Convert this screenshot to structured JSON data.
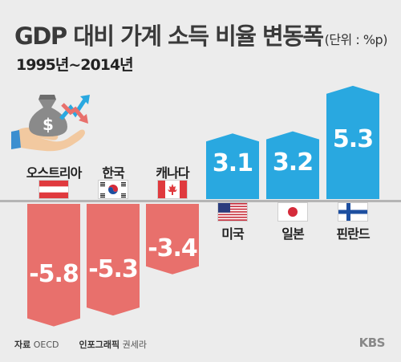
{
  "title": "GDP 대비 가계 소득 비율 변동폭",
  "unit": "(단위 : %p)",
  "subtitle": "1995년~2014년",
  "chart_data": {
    "type": "bar",
    "title": "GDP 대비 가계 소득 비율 변동폭",
    "subtitle": "1995년~2014년",
    "unit": "%p",
    "categories": [
      "오스트리아",
      "한국",
      "캐나다",
      "미국",
      "일본",
      "핀란드"
    ],
    "values": [
      -5.8,
      -5.3,
      -3.4,
      3.1,
      3.2,
      5.3
    ],
    "value_labels": [
      "-5.8",
      "-5.3",
      "-3.4",
      "3.1",
      "3.2",
      "5.3"
    ],
    "colors": {
      "negative": "#e8706c",
      "positive": "#29a8e0"
    },
    "grid": false,
    "legend": "none"
  },
  "footer": {
    "source_key": "자료",
    "source_value": "OECD",
    "graphic_key": "인포그래픽",
    "graphic_value": "권세라",
    "logo": "KBS"
  },
  "icon": "money-bag-hand-icon",
  "flags": [
    "austria-flag-icon",
    "korea-flag-icon",
    "canada-flag-icon",
    "usa-flag-icon",
    "japan-flag-icon",
    "finland-flag-icon"
  ]
}
